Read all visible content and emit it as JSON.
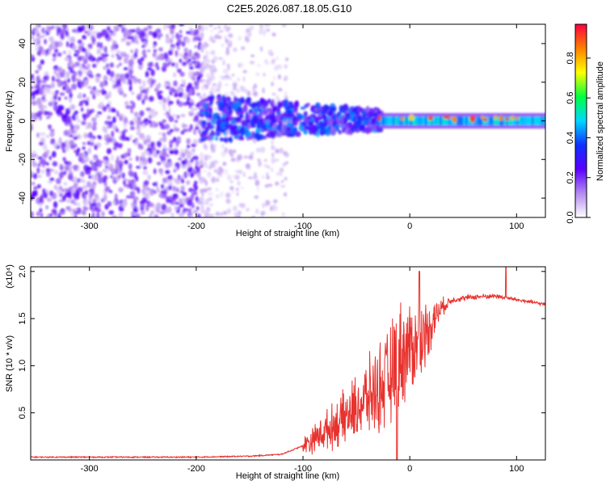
{
  "title": "C2E5.2026.087.18.05.G10",
  "colors": {
    "snr_line": "#e8322e",
    "axis": "#000000",
    "background": "#ffffff"
  },
  "chart_data": [
    {
      "type": "heatmap",
      "title": "C2E5.2026.087.18.05.G10",
      "xlabel": "Height of straight line (km)",
      "ylabel": "Frequency (Hz)",
      "xlim": [
        -355,
        127
      ],
      "ylim": [
        -50,
        50
      ],
      "xticks": [
        -300,
        -200,
        -100,
        0,
        100
      ],
      "yticks": [
        -40,
        -20,
        0,
        20,
        40
      ],
      "colorbar": {
        "label": "Normalized spectral amplitude",
        "range": [
          0.0,
          0.97
        ],
        "ticks": [
          0.0,
          0.2,
          0.4,
          0.6,
          0.8
        ],
        "tick_labels": [
          "0.0",
          "0.2",
          "0.4",
          "0.6",
          "0.8"
        ],
        "colors": [
          "#ffffff",
          "#b48af0",
          "#5a00ff",
          "#1030ff",
          "#00d8ff",
          "#00ff40",
          "#ffff00",
          "#ff8000",
          "#ff0040"
        ]
      },
      "description_regions": [
        {
          "x_range": [
            -355,
            -195
          ],
          "freq_range": [
            -50,
            50
          ],
          "amplitude": 0.15
        },
        {
          "x_range": [
            -195,
            -110
          ],
          "freq_range": [
            -12,
            12
          ],
          "amplitude": 0.3
        },
        {
          "x_range": [
            -110,
            -30
          ],
          "freq_range": [
            -6,
            8
          ],
          "amplitude": 0.35
        },
        {
          "x_range": [
            -30,
            127
          ],
          "freq_range": [
            -3,
            3
          ],
          "amplitude": 0.45
        }
      ]
    },
    {
      "type": "line",
      "xlabel": "Height of straight line (km)",
      "ylabel": "SNR (10 * v/v)",
      "y_multiplier_label": "(x10⁴)",
      "xlim": [
        -355,
        127
      ],
      "ylim": [
        0,
        2.05
      ],
      "xticks": [
        -300,
        -200,
        -100,
        0,
        100
      ],
      "yticks": [
        0.5,
        1.0,
        1.5,
        2.0
      ],
      "ytick_labels": [
        "0.5",
        "1.0",
        "1.5",
        "2.0"
      ],
      "series": [
        {
          "name": "SNR",
          "x": [
            -355,
            -300,
            -250,
            -200,
            -150,
            -120,
            -100,
            -80,
            -60,
            -40,
            -20,
            -10,
            0,
            10,
            20,
            30,
            40,
            60,
            80,
            90,
            100,
            127
          ],
          "values": [
            0.03,
            0.03,
            0.03,
            0.03,
            0.04,
            0.06,
            0.15,
            0.3,
            0.45,
            0.65,
            0.85,
            1.1,
            1.2,
            1.25,
            1.45,
            1.62,
            1.7,
            1.73,
            1.74,
            1.72,
            1.7,
            1.65
          ],
          "noise_envelope": [
            {
              "x": -100,
              "amp": 0.12
            },
            {
              "x": -60,
              "amp": 0.35
            },
            {
              "x": -30,
              "amp": 0.55
            },
            {
              "x": -10,
              "amp": 0.7
            },
            {
              "x": 10,
              "amp": 0.5
            },
            {
              "x": 30,
              "amp": 0.12
            },
            {
              "x": 40,
              "amp": 0.04
            },
            {
              "x": 127,
              "amp": 0.02
            }
          ],
          "peaks": [
            {
              "x": 9,
              "y": 2.0
            },
            {
              "x": 90,
              "y": 2.05
            },
            {
              "x": -12,
              "y": 0.0
            }
          ]
        }
      ]
    }
  ]
}
